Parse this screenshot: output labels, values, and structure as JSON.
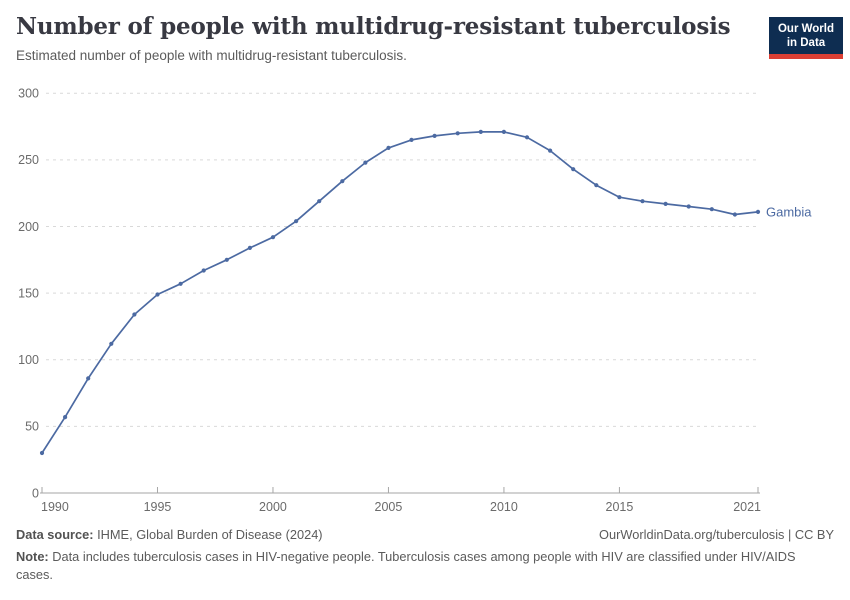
{
  "header": {
    "title": "Number of people with multidrug-resistant tuberculosis",
    "subtitle": "Estimated number of people with multidrug-resistant tuberculosis.",
    "logo": {
      "line1": "Our World",
      "line2": "in Data",
      "bg_color": "#0e2d51",
      "accent_color": "#dc3f34"
    }
  },
  "chart_data": {
    "type": "line",
    "title": "Number of people with multidrug-resistant tuberculosis",
    "x": [
      1990,
      1991,
      1992,
      1993,
      1994,
      1995,
      1996,
      1997,
      1998,
      1999,
      2000,
      2001,
      2002,
      2003,
      2004,
      2005,
      2006,
      2007,
      2008,
      2009,
      2010,
      2011,
      2012,
      2013,
      2014,
      2015,
      2016,
      2017,
      2018,
      2019,
      2020,
      2021
    ],
    "series": [
      {
        "name": "Gambia",
        "color": "#4c6aa2",
        "values": [
          30,
          57,
          86,
          112,
          134,
          149,
          157,
          167,
          175,
          184,
          192,
          204,
          219,
          234,
          248,
          259,
          265,
          268,
          270,
          271,
          271,
          267,
          257,
          243,
          231,
          222,
          219,
          217,
          215,
          213,
          209,
          211
        ]
      }
    ],
    "xlabel": "",
    "ylabel": "",
    "xticks": [
      1990,
      1995,
      2000,
      2005,
      2010,
      2015,
      2021
    ],
    "yticks": [
      0,
      50,
      100,
      150,
      200,
      250,
      300
    ],
    "ylim": [
      0,
      300
    ],
    "xlim": [
      1990,
      2021
    ],
    "grid": "horizontal-dashed",
    "legend_position": "end-of-line-label",
    "colors": {
      "gridline": "#d9d9d9",
      "axis": "#a6a6a6",
      "tick_label": "#6b6b6b"
    }
  },
  "footer": {
    "datasource_label": "Data source:",
    "datasource_text": "IHME, Global Burden of Disease (2024)",
    "license_text": "OurWorldinData.org/tuberculosis | CC BY",
    "note_label": "Note:",
    "note_text": "Data includes tuberculosis cases in HIV-negative people. Tuberculosis cases among people with HIV are classified under HIV/AIDS cases."
  }
}
